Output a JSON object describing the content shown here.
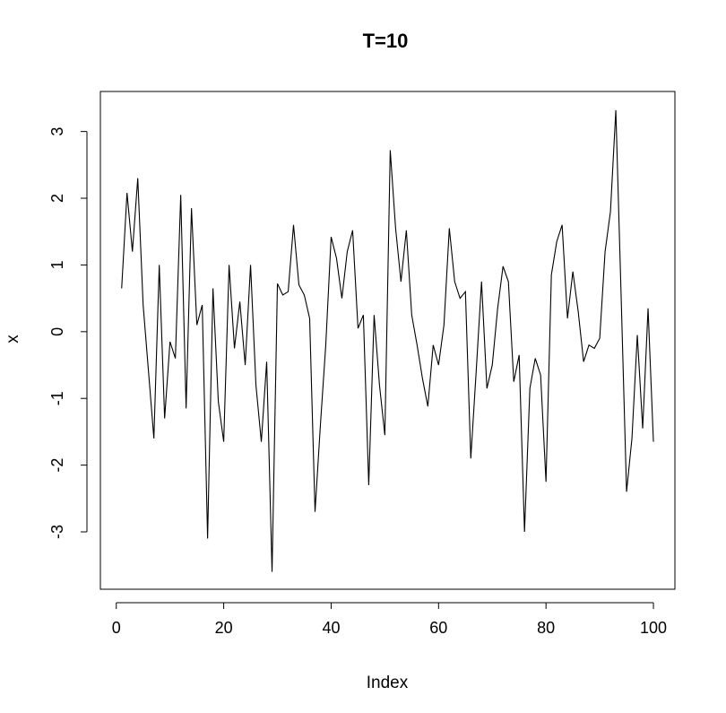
{
  "chart_data": {
    "type": "line",
    "title": "T=10",
    "xlabel": "Index",
    "ylabel": "x",
    "xlim": [
      -2.96,
      104
    ],
    "ylim": [
      -3.86,
      3.6
    ],
    "x_ticks": [
      0,
      20,
      40,
      60,
      80,
      100
    ],
    "y_ticks": [
      -3,
      -2,
      -1,
      0,
      1,
      2,
      3
    ],
    "grid": false,
    "legend": "none",
    "line_color": "#000000",
    "x": [
      1,
      2,
      3,
      4,
      5,
      6,
      7,
      8,
      9,
      10,
      11,
      12,
      13,
      14,
      15,
      16,
      17,
      18,
      19,
      20,
      21,
      22,
      23,
      24,
      25,
      26,
      27,
      28,
      29,
      30,
      31,
      32,
      33,
      34,
      35,
      36,
      37,
      38,
      39,
      40,
      41,
      42,
      43,
      44,
      45,
      46,
      47,
      48,
      49,
      50,
      51,
      52,
      53,
      54,
      55,
      56,
      57,
      58,
      59,
      60,
      61,
      62,
      63,
      64,
      65,
      66,
      67,
      68,
      69,
      70,
      71,
      72,
      73,
      74,
      75,
      76,
      77,
      78,
      79,
      80,
      81,
      82,
      83,
      84,
      85,
      86,
      87,
      88,
      89,
      90,
      91,
      92,
      93,
      94,
      95,
      96,
      97,
      98,
      99,
      100
    ],
    "series": [
      {
        "values": [
          0.65,
          2.08,
          1.2,
          2.3,
          0.4,
          -0.6,
          -1.6,
          1.0,
          -1.3,
          -0.15,
          -0.4,
          2.05,
          -1.15,
          1.85,
          0.1,
          0.4,
          -3.1,
          0.65,
          -1.05,
          -1.65,
          1.0,
          -0.25,
          0.45,
          -0.5,
          1.0,
          -0.8,
          -1.65,
          -0.45,
          -3.6,
          0.72,
          0.55,
          0.6,
          1.6,
          0.7,
          0.55,
          0.2,
          -2.7,
          -1.4,
          -0.2,
          1.42,
          1.1,
          0.5,
          1.2,
          1.52,
          0.05,
          0.25,
          -2.3,
          0.25,
          -0.8,
          -1.55,
          2.72,
          1.55,
          0.75,
          1.52,
          0.25,
          -0.2,
          -0.7,
          -1.12,
          -0.2,
          -0.5,
          0.1,
          1.55,
          0.75,
          0.5,
          0.6,
          -1.9,
          -0.6,
          0.75,
          -0.85,
          -0.5,
          0.35,
          0.98,
          0.75,
          -0.75,
          -0.35,
          -3.0,
          -0.85,
          -0.4,
          -0.65,
          -2.25,
          0.85,
          1.35,
          1.6,
          0.2,
          0.9,
          0.3,
          -0.45,
          -0.2,
          -0.25,
          -0.1,
          1.2,
          1.8,
          3.32,
          0.5,
          -2.4,
          -1.6,
          -0.05,
          -1.45,
          0.35,
          -1.65
        ]
      }
    ]
  }
}
